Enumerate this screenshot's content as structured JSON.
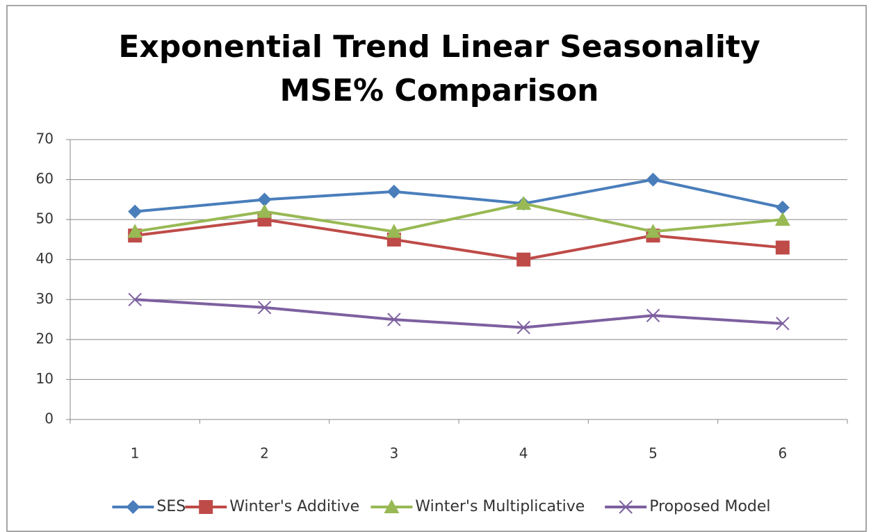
{
  "chart_data": {
    "type": "line",
    "title": [
      "Exponential Trend Linear Seasonality",
      "MSE% Comparison"
    ],
    "categories": [
      "1",
      "2",
      "3",
      "4",
      "5",
      "6"
    ],
    "series": [
      {
        "name": "SES",
        "color": "#4a7ebb",
        "marker": "diamond",
        "values": [
          52,
          55,
          57,
          54,
          60,
          53
        ]
      },
      {
        "name": "Winter's Additive",
        "color": "#be4b48",
        "marker": "square",
        "values": [
          46,
          50,
          45,
          40,
          46,
          43
        ]
      },
      {
        "name": "Winter's Multiplicative",
        "color": "#98b954",
        "marker": "triangle",
        "values": [
          47,
          52,
          47,
          54,
          47,
          50
        ]
      },
      {
        "name": "Proposed Model",
        "color": "#7d60a0",
        "marker": "x",
        "values": [
          30,
          28,
          25,
          23,
          26,
          24
        ]
      }
    ],
    "ylim": [
      0,
      70
    ],
    "yticks": [
      0,
      10,
      20,
      30,
      40,
      50,
      60,
      70
    ],
    "grid": true,
    "legend": "bottom"
  }
}
